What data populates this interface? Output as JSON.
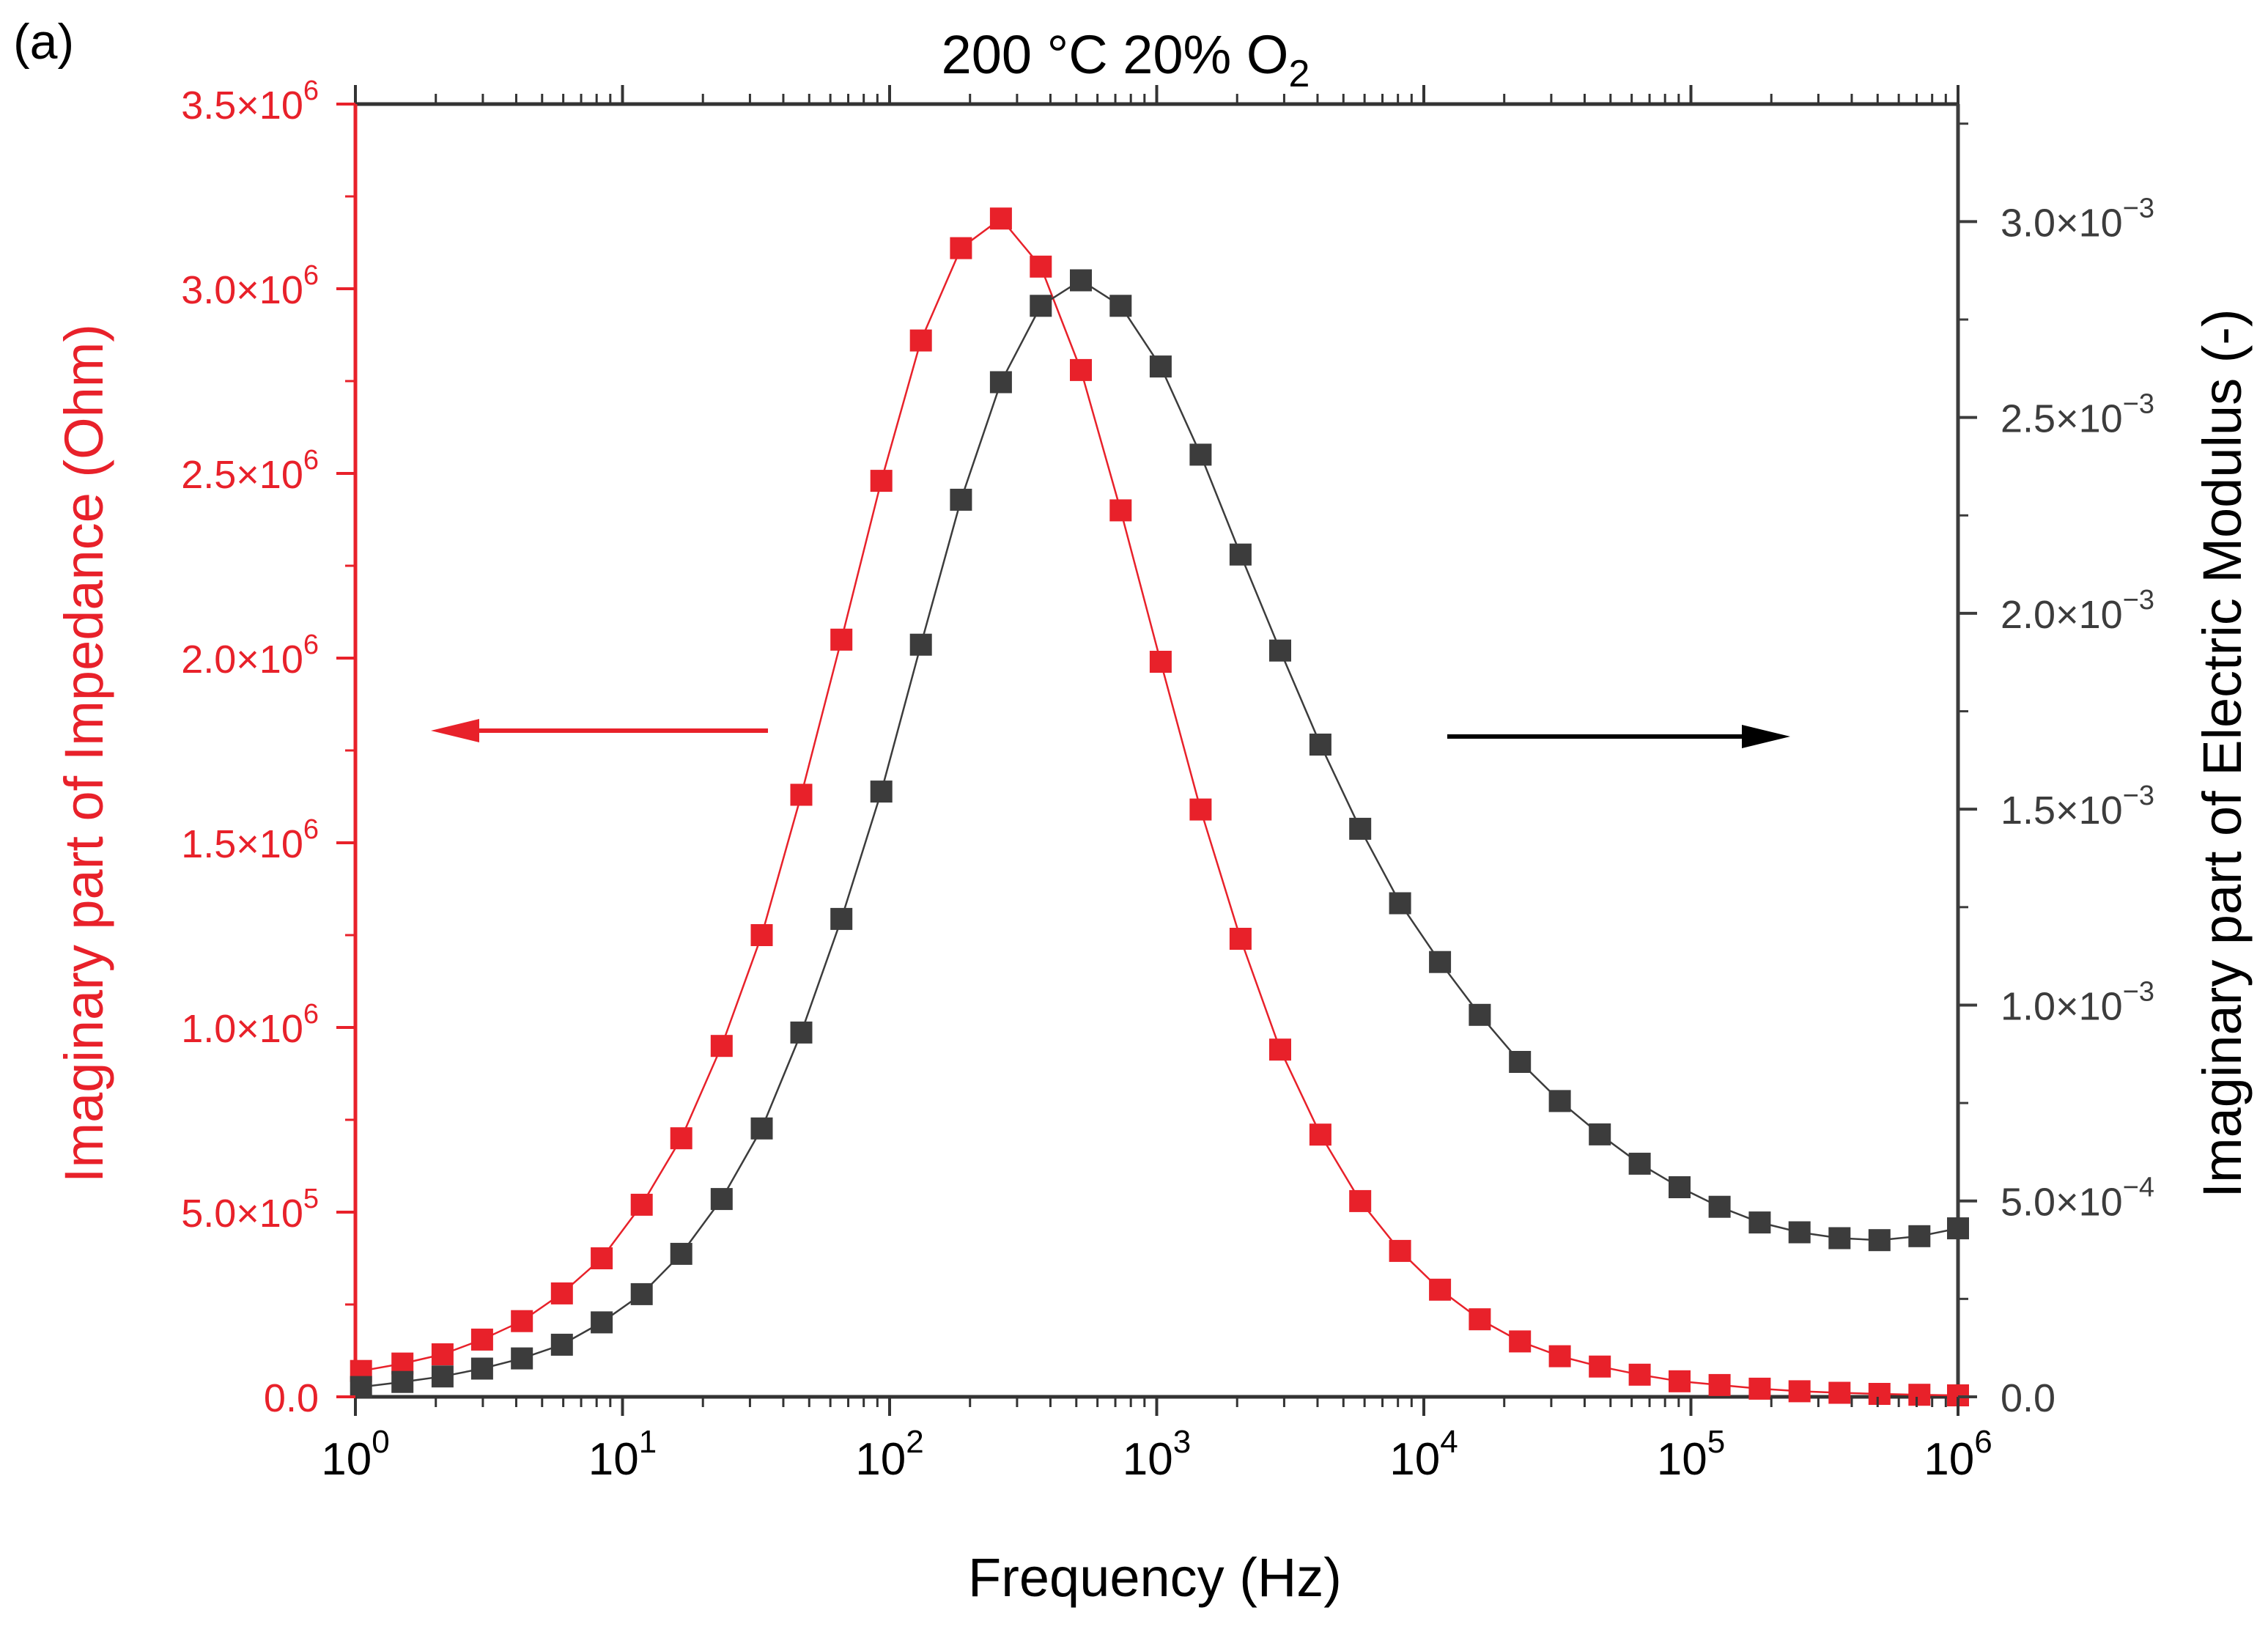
{
  "chart_data": {
    "type": "scatter",
    "panel_label": "(a)",
    "title": {
      "main": "200 °C 20% O",
      "subscript": "2"
    },
    "xlabel": "Frequency (Hz)",
    "ylabel_left": "Imaginary part of Impedance (Ohm)",
    "ylabel_right": "Imaginary part of Electric Modulus (-)",
    "x_scale": "log",
    "xlim": [
      1,
      1000000
    ],
    "ylim_left": [
      0,
      3500000
    ],
    "ylim_right": [
      0,
      0.0033
    ],
    "x_ticks": [
      {
        "value": 1,
        "base": "10",
        "exp": "0"
      },
      {
        "value": 10,
        "base": "10",
        "exp": "1"
      },
      {
        "value": 100,
        "base": "10",
        "exp": "2"
      },
      {
        "value": 1000,
        "base": "10",
        "exp": "3"
      },
      {
        "value": 10000,
        "base": "10",
        "exp": "4"
      },
      {
        "value": 100000,
        "base": "10",
        "exp": "5"
      },
      {
        "value": 1000000,
        "base": "10",
        "exp": "6"
      }
    ],
    "y_ticks_left": [
      {
        "value": 0,
        "mantissa": "0.0",
        "exp": ""
      },
      {
        "value": 500000,
        "mantissa": "5.0×10",
        "exp": "5"
      },
      {
        "value": 1000000,
        "mantissa": "1.0×10",
        "exp": "6"
      },
      {
        "value": 1500000,
        "mantissa": "1.5×10",
        "exp": "6"
      },
      {
        "value": 2000000,
        "mantissa": "2.0×10",
        "exp": "6"
      },
      {
        "value": 2500000,
        "mantissa": "2.5×10",
        "exp": "6"
      },
      {
        "value": 3000000,
        "mantissa": "3.0×10",
        "exp": "6"
      },
      {
        "value": 3500000,
        "mantissa": "3.5×10",
        "exp": "6"
      }
    ],
    "y_ticks_right": [
      {
        "value": 0,
        "mantissa": "0.0",
        "exp": ""
      },
      {
        "value": 0.0005,
        "mantissa": "5.0×10",
        "exp": "−4"
      },
      {
        "value": 0.001,
        "mantissa": "1.0×10",
        "exp": "−3"
      },
      {
        "value": 0.0015,
        "mantissa": "1.5×10",
        "exp": "−3"
      },
      {
        "value": 0.002,
        "mantissa": "2.0×10",
        "exp": "−3"
      },
      {
        "value": 0.0025,
        "mantissa": "2.5×10",
        "exp": "−3"
      },
      {
        "value": 0.003,
        "mantissa": "3.0×10",
        "exp": "−3"
      }
    ],
    "x": [
      1,
      1.41,
      1.99,
      2.82,
      3.98,
      5.62,
      7.94,
      11.2,
      15.8,
      22.4,
      31.6,
      44.7,
      63.1,
      89.1,
      126,
      178,
      251,
      355,
      501,
      708,
      1000,
      1410,
      1990,
      2820,
      3980,
      5620,
      7940,
      11200,
      15800,
      22400,
      31600,
      44700,
      63100,
      89100,
      126000,
      178000,
      251000,
      355000,
      501000,
      708000,
      1000000
    ],
    "series": [
      {
        "name": "Imaginary part of Impedance",
        "axis": "left",
        "color": "#e8212a",
        "marker": "square",
        "x": [
          1.05,
          1.5,
          2.12,
          2.98,
          4.2,
          5.93,
          8.36,
          11.8,
          16.6,
          23.5,
          33.2,
          46.7,
          66.0,
          93.1,
          131,
          185,
          261,
          368,
          520,
          733,
          1035,
          1460,
          2060,
          2900,
          4100,
          5780,
          8150,
          11500,
          16200,
          22900,
          32300,
          45600,
          64300,
          90700,
          128000,
          181000,
          255000,
          360000,
          508000,
          717000,
          1000000
        ],
        "values": [
          70000,
          90000,
          115000,
          155000,
          205000,
          280000,
          375000,
          520000,
          700000,
          950000,
          1250000,
          1630000,
          2050000,
          2480000,
          2860000,
          3110000,
          3190000,
          3060000,
          2780000,
          2400000,
          1990000,
          1590000,
          1240000,
          940000,
          710000,
          530000,
          395000,
          290000,
          210000,
          150000,
          110000,
          82000,
          60000,
          42000,
          32000,
          22000,
          15000,
          11000,
          8000,
          5500,
          4000
        ]
      },
      {
        "name": "Imaginary part of Electric Modulus",
        "axis": "right",
        "color": "#3c3c3c",
        "marker": "square",
        "x": [
          1.05,
          1.5,
          2.12,
          2.98,
          4.2,
          5.93,
          8.36,
          11.8,
          16.6,
          23.5,
          33.2,
          46.7,
          66.0,
          93.1,
          131,
          185,
          261,
          368,
          520,
          733,
          1035,
          1460,
          2060,
          2900,
          4100,
          5780,
          8150,
          11500,
          16200,
          22900,
          32300,
          45600,
          64300,
          90700,
          128000,
          181000,
          255000,
          360000,
          508000,
          717000,
          1000000
        ],
        "values": [
          2.5e-05,
          3.8e-05,
          5.2e-05,
          7.2e-05,
          9.8e-05,
          0.000133,
          0.00019,
          0.000262,
          0.000365,
          0.000505,
          0.000685,
          0.00093,
          0.00122,
          0.001545,
          0.00192,
          0.00229,
          0.00259,
          0.002785,
          0.00285,
          0.002785,
          0.00263,
          0.002405,
          0.00215,
          0.001905,
          0.001665,
          0.00145,
          0.00126,
          0.00111,
          0.000975,
          0.000855,
          0.000755,
          0.00067,
          0.000595,
          0.000535,
          0.000485,
          0.000445,
          0.00042,
          0.000405,
          0.0004,
          0.00041,
          0.00043
        ]
      }
    ],
    "arrows": [
      {
        "direction": "left",
        "axis": "left",
        "color": "#e8212a"
      },
      {
        "direction": "right",
        "axis": "right",
        "color": "#000000"
      }
    ],
    "grid": false,
    "colors": {
      "left_axis": "#e8212a",
      "right_axis": "#3c3c3c",
      "frame": "#333333"
    }
  }
}
